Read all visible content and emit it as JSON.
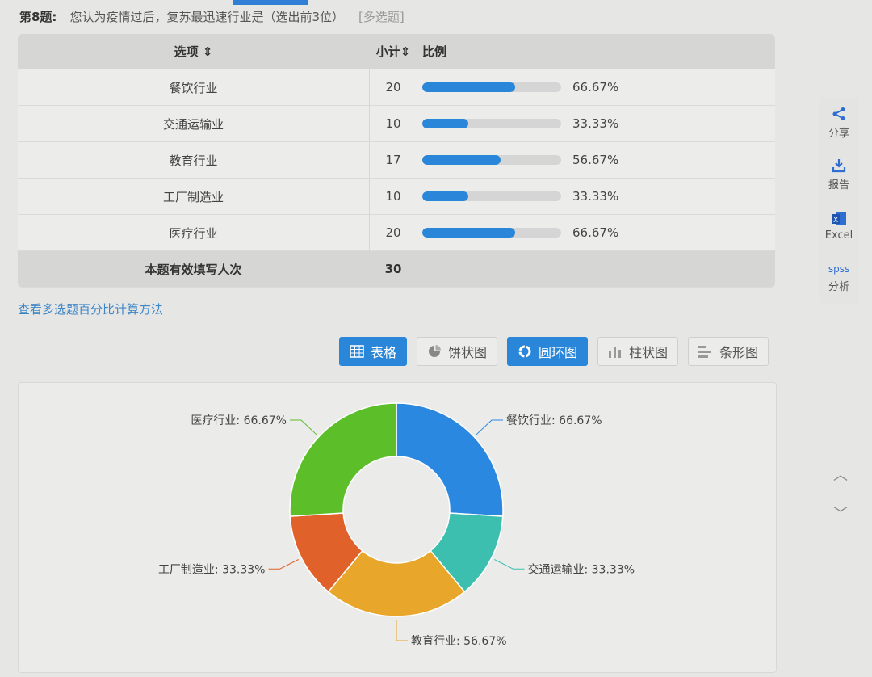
{
  "question": {
    "number": "第8题:",
    "text": "您认为疫情过后，复苏最迅速行业是（选出前3位）",
    "type": "[多选题]"
  },
  "table": {
    "headers": {
      "option": "选项 ⇕",
      "count": "小计⇕",
      "ratio": "比例"
    },
    "rows": [
      {
        "option": "餐饮行业",
        "count": "20",
        "percent": "66.67%",
        "fill": 66.67
      },
      {
        "option": "交通运输业",
        "count": "10",
        "percent": "33.33%",
        "fill": 33.33
      },
      {
        "option": "教育行业",
        "count": "17",
        "percent": "56.67%",
        "fill": 56.67
      },
      {
        "option": "工厂制造业",
        "count": "10",
        "percent": "33.33%",
        "fill": 33.33
      },
      {
        "option": "医疗行业",
        "count": "20",
        "percent": "66.67%",
        "fill": 66.67
      }
    ],
    "footer": {
      "label": "本题有效填写人次",
      "count": "30"
    }
  },
  "link": "查看多选题百分比计算方法",
  "view_buttons": [
    {
      "label": "表格",
      "icon": "table-icon",
      "active": true
    },
    {
      "label": "饼状图",
      "icon": "pie-icon",
      "active": false
    },
    {
      "label": "圆环图",
      "icon": "donut-icon",
      "active": true
    },
    {
      "label": "柱状图",
      "icon": "bar-chart-icon",
      "active": false
    },
    {
      "label": "条形图",
      "icon": "horizontal-bar-icon",
      "active": false
    }
  ],
  "sidebar": [
    {
      "label": "分享",
      "icon": "share-icon"
    },
    {
      "label": "报告",
      "icon": "download-icon"
    },
    {
      "label": "Excel",
      "icon": "excel-icon"
    },
    {
      "label": "分析",
      "icon": "spss-icon",
      "icon_text": "spss"
    }
  ],
  "chart_data": {
    "type": "pie",
    "donut": true,
    "categories": [
      "餐饮行业",
      "交通运输业",
      "教育行业",
      "工厂制造业",
      "医疗行业"
    ],
    "values": [
      20,
      10,
      17,
      10,
      20
    ],
    "labels": [
      "餐饮行业: 66.67%",
      "交通运输业: 33.33%",
      "教育行业: 56.67%",
      "工厂制造业: 33.33%",
      "医疗行业: 66.67%"
    ],
    "colors": [
      "#2a88e0",
      "#3cbfae",
      "#e8a62a",
      "#e0622a",
      "#5cbf2a"
    ]
  }
}
